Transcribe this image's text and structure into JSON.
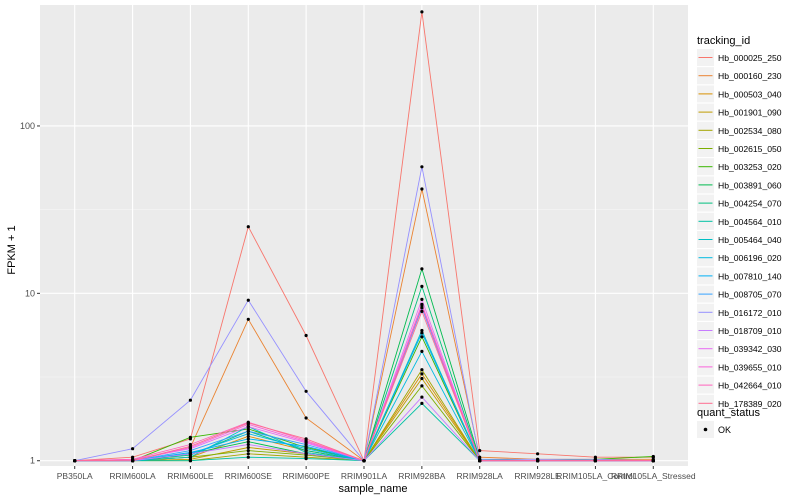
{
  "chart_data": {
    "type": "line",
    "title": "",
    "xlabel": "sample_name",
    "ylabel": "FPKM + 1",
    "y_scale": "log10",
    "ylim": [
      1,
      500
    ],
    "yticks": [
      1,
      10,
      100
    ],
    "yticklabels": [
      "1",
      "10",
      "100"
    ],
    "grid": true,
    "legend_position": "right",
    "categories": [
      "PB350LA",
      "RRIM600LA",
      "RRIM600LE",
      "RRIM600SE",
      "RRIM600PE",
      "RRIM901LA",
      "RRIM928BA",
      "RRIM928LA",
      "RRIM928LE",
      "RRIM105LA_Control",
      "RRIM105LA_Stressed"
    ],
    "legend_tracking_title": "tracking_id",
    "legend_status_title": "quant_status",
    "legend_status_label": "OK",
    "series": [
      {
        "name": "Hb_000025_250",
        "color": "#F8766D",
        "values": [
          1,
          1.05,
          1.35,
          25,
          5.6,
          1,
          480,
          1.15,
          1.1,
          1.05,
          1.05
        ]
      },
      {
        "name": "Hb_000160_230",
        "color": "#EA8331",
        "values": [
          1,
          1.0,
          1.2,
          7,
          1.8,
          1,
          42,
          1.05,
          1.02,
          1.02,
          1.02
        ]
      },
      {
        "name": "Hb_000503_040",
        "color": "#D89000",
        "values": [
          1,
          1.0,
          1.05,
          1.4,
          1.15,
          1,
          3.3,
          1.0,
          1.0,
          1.0,
          1.0
        ]
      },
      {
        "name": "Hb_001901_090",
        "color": "#C09B00",
        "values": [
          1,
          1.0,
          1.02,
          1.2,
          1.1,
          1,
          3.1,
          1.0,
          1.0,
          1.0,
          1.0
        ]
      },
      {
        "name": "Hb_002534_080",
        "color": "#A3A500",
        "values": [
          1,
          1.0,
          1.0,
          1.1,
          1.05,
          1,
          3.5,
          1.0,
          1.0,
          1.0,
          1.0
        ]
      },
      {
        "name": "Hb_002615_050",
        "color": "#7CAE00",
        "values": [
          1,
          1.0,
          1.05,
          1.15,
          1.08,
          1,
          2.8,
          1.0,
          1.0,
          1.0,
          1.0
        ]
      },
      {
        "name": "Hb_003253_020",
        "color": "#39B600",
        "values": [
          1,
          1.0,
          1.38,
          1.55,
          1.2,
          1,
          5.5,
          1.0,
          1.0,
          1.02,
          1.06
        ]
      },
      {
        "name": "Hb_003891_060",
        "color": "#00BB4E",
        "values": [
          1,
          1.0,
          1.1,
          1.3,
          1.1,
          1,
          14,
          1.02,
          1.0,
          1.0,
          1.0
        ]
      },
      {
        "name": "Hb_004254_070",
        "color": "#00BF7D",
        "values": [
          1,
          1.0,
          1.08,
          1.5,
          1.15,
          1,
          11,
          1.0,
          1.0,
          1.0,
          1.0
        ]
      },
      {
        "name": "Hb_004564_010",
        "color": "#00C1A3",
        "values": [
          1,
          1.0,
          1.0,
          1.05,
          1.03,
          1,
          2.2,
          1.0,
          1.0,
          1.0,
          1.0
        ]
      },
      {
        "name": "Hb_005464_040",
        "color": "#00BFC4",
        "values": [
          1,
          1.0,
          1.05,
          1.6,
          1.12,
          1,
          6,
          1.0,
          1.0,
          1.0,
          1.0
        ]
      },
      {
        "name": "Hb_006196_020",
        "color": "#00BAE0",
        "values": [
          1,
          1.0,
          1.1,
          1.45,
          1.18,
          1,
          4.5,
          1.0,
          1.0,
          1.0,
          1.0
        ]
      },
      {
        "name": "Hb_007810_140",
        "color": "#00B0F6",
        "values": [
          1,
          1.0,
          1.12,
          1.35,
          1.22,
          1,
          5.8,
          1.0,
          1.0,
          1.0,
          1.0
        ]
      },
      {
        "name": "Hb_008705_070",
        "color": "#35A2FF",
        "values": [
          1,
          1.0,
          1.15,
          1.5,
          1.25,
          1,
          8.2,
          1.0,
          1.0,
          1.0,
          1.0
        ]
      },
      {
        "name": "Hb_016172_010",
        "color": "#9590FF",
        "values": [
          1,
          1.18,
          2.3,
          9.1,
          2.6,
          1,
          57,
          1.02,
          1.02,
          1.02,
          1.0
        ]
      },
      {
        "name": "Hb_018709_010",
        "color": "#C77CFF",
        "values": [
          1,
          1.0,
          1.1,
          1.25,
          1.1,
          1,
          2.4,
          1.0,
          1.0,
          1.0,
          1.0
        ]
      },
      {
        "name": "Hb_039342_030",
        "color": "#E76BF3",
        "values": [
          1,
          1.02,
          1.18,
          1.6,
          1.28,
          1,
          9.2,
          1.0,
          1.0,
          1.0,
          1.0
        ]
      },
      {
        "name": "Hb_039655_010",
        "color": "#FA62DB",
        "values": [
          1,
          1.0,
          1.2,
          1.65,
          1.3,
          1,
          8.6,
          1.0,
          1.0,
          1.0,
          1.0
        ]
      },
      {
        "name": "Hb_042664_010",
        "color": "#FF62BC",
        "values": [
          1,
          1.02,
          1.25,
          1.7,
          1.32,
          1,
          8.4,
          1.0,
          1.0,
          1.0,
          1.0
        ]
      },
      {
        "name": "Hb_178389_020",
        "color": "#FF6C91",
        "values": [
          1,
          1.0,
          1.22,
          1.68,
          1.35,
          1,
          7.8,
          1.0,
          1.0,
          1.0,
          1.0
        ]
      }
    ]
  }
}
